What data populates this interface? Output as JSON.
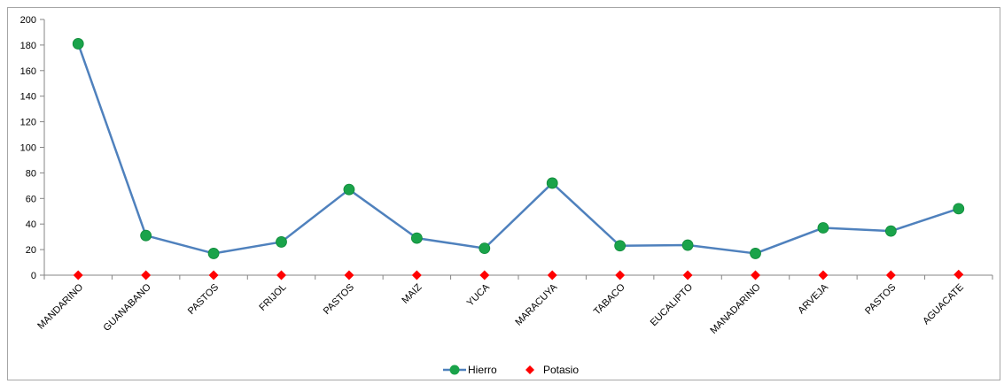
{
  "chart_data": {
    "type": "line",
    "categories": [
      "MANDARINO",
      "GUANABANO",
      "PASTOS",
      "FRIJOL",
      "PASTOS",
      "MAIZ",
      "YUCA",
      "MARACUYA",
      "TABACO",
      "EUCALIPTO",
      "MANADARINO",
      "ARVEJA",
      "PASTOS",
      "AGUACATE"
    ],
    "series": [
      {
        "name": "Hierro",
        "values": [
          181,
          31,
          17,
          26,
          67,
          29,
          21,
          72,
          23,
          23.5,
          17,
          37,
          34.5,
          52
        ],
        "color": "#4f81bd",
        "marker_color": "#1aa34a",
        "marker": "circle",
        "line": true
      },
      {
        "name": "Potasio",
        "values": [
          0,
          0,
          0,
          0,
          0,
          0,
          0,
          0,
          0,
          0,
          0,
          0,
          0,
          0.5
        ],
        "color": "#ff0000",
        "marker": "diamond",
        "line": false
      }
    ],
    "ylim": [
      0,
      200
    ],
    "yticks": [
      0,
      20,
      40,
      60,
      80,
      100,
      120,
      140,
      160,
      180,
      200
    ],
    "title": "",
    "xlabel": "",
    "ylabel": "",
    "grid": false,
    "legend": "bottom"
  }
}
